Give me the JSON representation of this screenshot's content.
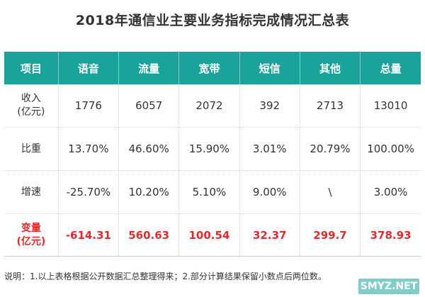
{
  "title": "2018年通信业主要业务指标完成情况汇总表",
  "colors": {
    "header_bg": "#19a39a",
    "highlight": "#e32a2a"
  },
  "table": {
    "headers": [
      "项目",
      "语音",
      "流量",
      "宽带",
      "短信",
      "其他",
      "总量"
    ],
    "rows": [
      {
        "label_line1": "收入",
        "label_line2": "(亿元)",
        "values": [
          "1776",
          "6057",
          "2072",
          "392",
          "2713",
          "13010"
        ]
      },
      {
        "label_line1": "比重",
        "label_line2": "",
        "values": [
          "13.70%",
          "46.60%",
          "15.90%",
          "3.01%",
          "20.79%",
          "100.00%"
        ]
      },
      {
        "label_line1": "增速",
        "label_line2": "",
        "values": [
          "-25.70%",
          "10.20%",
          "5.10%",
          "9.00%",
          "\\",
          "3.00%"
        ]
      },
      {
        "label_line1": "变量",
        "label_line2": "(亿元)",
        "values": [
          "-614.31",
          "560.63",
          "100.54",
          "32.37",
          "299.7",
          "378.93"
        ]
      }
    ]
  },
  "footnote": "说明：1.以上表格根据公开数据汇总整理得来；2.部分计算结果保留小数点后两位数。",
  "watermark": "SMYZ.NET"
}
